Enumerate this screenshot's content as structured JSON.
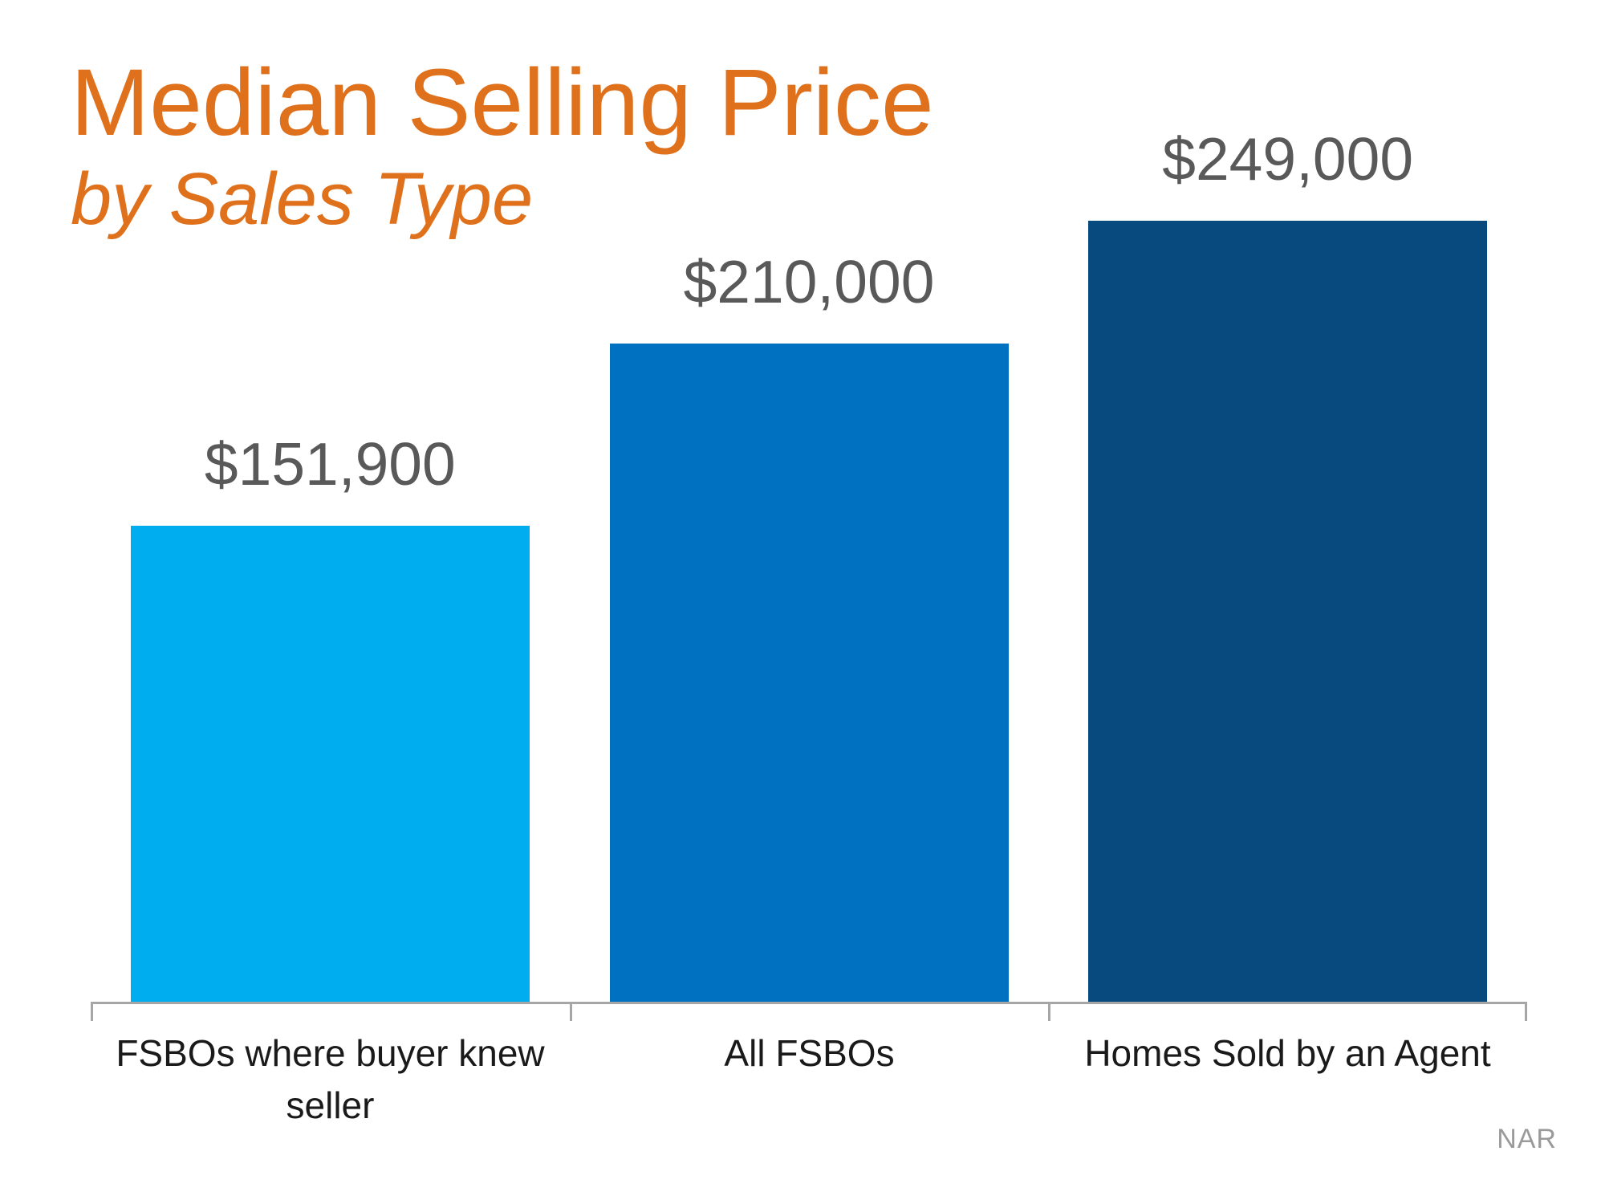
{
  "title": {
    "line1": "Median Selling Price",
    "line2": "by Sales Type"
  },
  "source": "NAR",
  "colors": {
    "title_orange": "#E0711C",
    "value_label_gray": "#595959",
    "axis_gray": "#A6A6A6",
    "category_label": "#1a1a1a",
    "source_gray": "#9a9a9a",
    "background": "#ffffff"
  },
  "chart_data": {
    "type": "bar",
    "title": "Median Selling Price",
    "subtitle": "by Sales Type",
    "categories": [
      "FSBOs where buyer knew seller",
      "All FSBOs",
      "Homes Sold by an Agent"
    ],
    "values": [
      151900,
      210000,
      249000
    ],
    "value_labels": [
      "$151,900",
      "$210,000",
      "$249,000"
    ],
    "bar_colors": [
      "#00AEEF",
      "#0070C0",
      "#08497E"
    ],
    "xlabel": "",
    "ylabel": "",
    "ylim": [
      0,
      260000
    ],
    "grid": false,
    "legend": false,
    "value_labels_position": "above-bars",
    "source": "NAR"
  }
}
